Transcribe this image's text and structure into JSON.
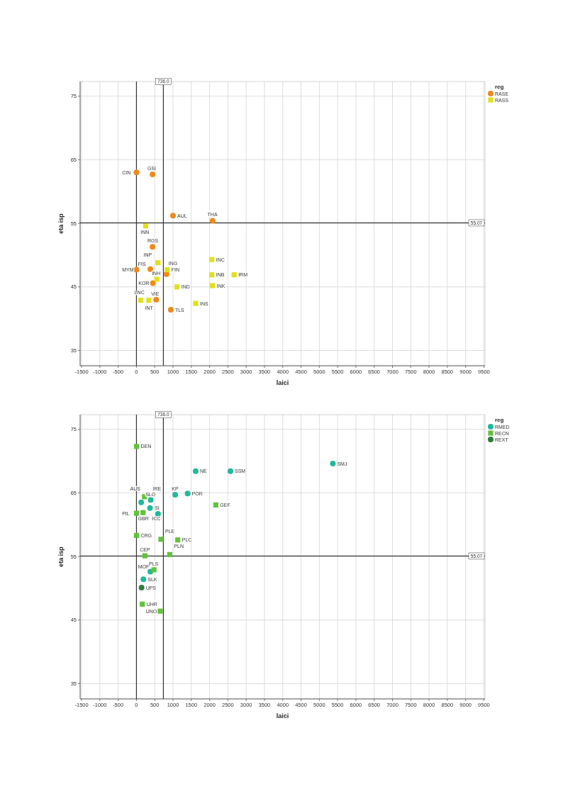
{
  "chart_data": [
    {
      "type": "scatter",
      "xlabel": "laici",
      "ylabel": "eta isp",
      "legend_title": "reg",
      "legend": "top right",
      "grid": true,
      "xlim": [
        -1540,
        9530
      ],
      "ylim": [
        32.6,
        77.3
      ],
      "xticks": [
        -1500,
        -1000,
        -500,
        0,
        500,
        1000,
        1500,
        2000,
        2500,
        3000,
        3500,
        4000,
        4500,
        5000,
        5500,
        6000,
        6500,
        7000,
        7500,
        8000,
        8500,
        9000,
        9500
      ],
      "yticks": [
        35,
        45,
        55,
        65,
        75
      ],
      "ref_lines": [
        {
          "axis": "x",
          "value": 0,
          "color": "#333333"
        },
        {
          "axis": "x",
          "value": 736,
          "label": "736.0",
          "color": "#333333"
        },
        {
          "axis": "y",
          "value": 55.07,
          "label": "55.07",
          "color": "#333333"
        }
      ],
      "series": [
        {
          "name": "RASE",
          "color": "#ee8a1c",
          "marker": "circle",
          "x": [
            0,
            440,
            1000,
            2080,
            440,
            0,
            380,
            820,
            450,
            540,
            940
          ],
          "values": [
            63.0,
            62.7,
            56.2,
            55.4,
            51.3,
            47.7,
            47.8,
            47.0,
            45.6,
            43.0,
            41.4
          ]
        },
        {
          "name": "RASS",
          "color": "#e2df1f",
          "marker": "square",
          "x": [
            250,
            590,
            2060,
            840,
            560,
            2060,
            2670,
            2080,
            1110,
            120,
            340,
            1620
          ],
          "values": [
            54.6,
            48.8,
            49.3,
            47.7,
            46.2,
            46.9,
            46.9,
            45.2,
            45.0,
            42.9,
            42.9,
            42.4
          ]
        }
      ],
      "annotations": [
        {
          "text": "CIN",
          "x": 0,
          "y": 63.0
        },
        {
          "text": "GSI",
          "x": 440,
          "y": 62.7
        },
        {
          "text": "AUL",
          "x": 1000,
          "y": 56.2
        },
        {
          "text": "THA",
          "x": 2080,
          "y": 55.4
        },
        {
          "text": "RGS",
          "x": 440,
          "y": 51.3
        },
        {
          "text": "MYM",
          "x": 0,
          "y": 47.7
        },
        {
          "text": "FIS",
          "x": 380,
          "y": 47.8
        },
        {
          "text": "ING",
          "x": 820,
          "y": 47.0
        },
        {
          "text": "KOR",
          "x": 450,
          "y": 45.6
        },
        {
          "text": "VIE",
          "x": 540,
          "y": 43.0
        },
        {
          "text": "TLS",
          "x": 940,
          "y": 41.4
        },
        {
          "text": "INN",
          "x": 250,
          "y": 54.6
        },
        {
          "text": "INP",
          "x": 590,
          "y": 48.8
        },
        {
          "text": "INC",
          "x": 2060,
          "y": 49.3
        },
        {
          "text": "FIN",
          "x": 840,
          "y": 47.7
        },
        {
          "text": "INH",
          "x": 560,
          "y": 46.2
        },
        {
          "text": "INB",
          "x": 2060,
          "y": 46.9
        },
        {
          "text": "IRM",
          "x": 2670,
          "y": 46.9
        },
        {
          "text": "INK",
          "x": 2080,
          "y": 45.2
        },
        {
          "text": "IND",
          "x": 1110,
          "y": 45.0
        },
        {
          "text": "INT",
          "x": 120,
          "y": 42.9
        },
        {
          "text": "LNC",
          "x": 340,
          "y": 42.9
        },
        {
          "text": "INS",
          "x": 1620,
          "y": 42.4
        }
      ]
    },
    {
      "type": "scatter",
      "xlabel": "laici",
      "ylabel": "eta isp",
      "legend_title": "reg",
      "legend": "top right",
      "grid": true,
      "xlim": [
        -1540,
        9530
      ],
      "ylim": [
        32.6,
        77.3
      ],
      "xticks": [
        -1500,
        -1000,
        -500,
        0,
        500,
        1000,
        1500,
        2000,
        2500,
        3000,
        3500,
        4000,
        4500,
        5000,
        5500,
        6000,
        6500,
        7000,
        7500,
        8000,
        8500,
        9000,
        9500
      ],
      "yticks": [
        35,
        45,
        55,
        65,
        75
      ],
      "ref_lines": [
        {
          "axis": "x",
          "value": 0,
          "color": "#333333"
        },
        {
          "axis": "x",
          "value": 736,
          "label": "736.0",
          "color": "#333333"
        },
        {
          "axis": "y",
          "value": 55.07,
          "label": "55.07",
          "color": "#333333"
        }
      ],
      "series": [
        {
          "name": "RMED",
          "color": "#21b99a",
          "marker": "circle",
          "x": [
            1620,
            2570,
            5370,
            1060,
            1400,
            390,
            130,
            370,
            590,
            380,
            190
          ],
          "values": [
            68.4,
            68.4,
            69.6,
            64.7,
            64.9,
            63.9,
            63.5,
            62.6,
            61.7,
            52.6,
            51.4
          ]
        },
        {
          "name": "RECN",
          "color": "#62c23c",
          "marker": "square",
          "x": [
            0,
            220,
            2170,
            0,
            180,
            0,
            670,
            1130,
            230,
            910,
            480,
            160,
            650
          ],
          "values": [
            72.3,
            64.4,
            63.1,
            61.8,
            61.9,
            58.3,
            57.7,
            57.6,
            55.1,
            55.3,
            52.9,
            47.5,
            46.4
          ]
        },
        {
          "name": "REXT",
          "color": "#2b7f3a",
          "marker": "circle",
          "x": [
            140
          ],
          "values": [
            50.1
          ]
        }
      ],
      "annotations": [
        {
          "text": "NE",
          "x": 1620,
          "y": 68.4
        },
        {
          "text": "SSM",
          "x": 2570,
          "y": 68.4
        },
        {
          "text": "SMJ",
          "x": 5370,
          "y": 69.6
        },
        {
          "text": "KP",
          "x": 1060,
          "y": 64.7
        },
        {
          "text": "POR",
          "x": 1400,
          "y": 64.9
        },
        {
          "text": "IRE",
          "x": 390,
          "y": 63.9
        },
        {
          "text": "SLO",
          "x": 130,
          "y": 63.5
        },
        {
          "text": "ICC",
          "x": 370,
          "y": 62.6
        },
        {
          "text": "SI",
          "x": 590,
          "y": 61.7
        },
        {
          "text": "MOP",
          "x": 380,
          "y": 52.6
        },
        {
          "text": "SLK",
          "x": 190,
          "y": 51.4
        },
        {
          "text": "DEN",
          "x": 0,
          "y": 72.3
        },
        {
          "text": "AUS",
          "x": 220,
          "y": 64.4
        },
        {
          "text": "GEF",
          "x": 2170,
          "y": 63.1
        },
        {
          "text": "PIL",
          "x": 0,
          "y": 61.8
        },
        {
          "text": "GBR",
          "x": 180,
          "y": 61.9
        },
        {
          "text": "CRG",
          "x": 0,
          "y": 58.3
        },
        {
          "text": "PLE",
          "x": 670,
          "y": 57.7
        },
        {
          "text": "PLC",
          "x": 1130,
          "y": 57.6
        },
        {
          "text": "CEP",
          "x": 230,
          "y": 55.1
        },
        {
          "text": "PLN",
          "x": 910,
          "y": 55.3
        },
        {
          "text": "PLS",
          "x": 480,
          "y": 52.9
        },
        {
          "text": "UHR",
          "x": 160,
          "y": 47.5
        },
        {
          "text": "UNO",
          "x": 650,
          "y": 46.4
        },
        {
          "text": "UPS",
          "x": 140,
          "y": 50.1
        }
      ]
    }
  ]
}
